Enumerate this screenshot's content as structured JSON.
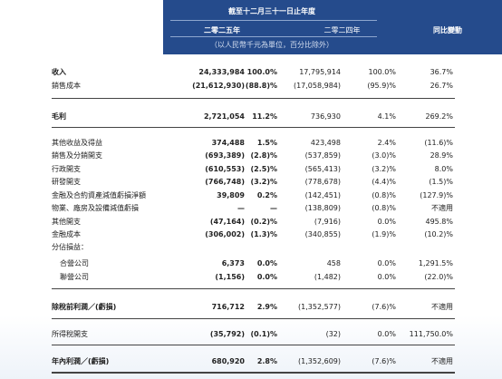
{
  "header": {
    "period": "截至十二月三十一日止年度",
    "year_current": "二零二五年",
    "year_prior": "二零二四年",
    "change": "同比變動",
    "unit": "（以人民幣千元為單位，百分比除外）"
  },
  "table": {
    "rows": [
      {
        "label": "收入",
        "cells": [
          "24,333,984",
          "100.0%",
          "17,795,914",
          "100.0%",
          "36.7%"
        ]
      },
      {
        "label": "銷售成本",
        "cells": [
          "(21,612,930)",
          "(88.8)%",
          "(17,058,984)",
          "(95.9)%",
          "26.7%"
        ]
      },
      {
        "label": "毛利",
        "cells": [
          "2,721,054",
          "11.2%",
          "736,930",
          "4.1%",
          "269.2%"
        ]
      },
      {
        "label": "其他收益及得益",
        "cells": [
          "374,488",
          "1.5%",
          "423,498",
          "2.4%",
          "(11.6)%"
        ]
      },
      {
        "label": "銷售及分銷開支",
        "cells": [
          "(693,389)",
          "(2.8)%",
          "(537,859)",
          "(3.0)%",
          "28.9%"
        ]
      },
      {
        "label": "行政開支",
        "cells": [
          "(610,553)",
          "(2.5)%",
          "(565,413)",
          "(3.2)%",
          "8.0%"
        ]
      },
      {
        "label": "研發開支",
        "cells": [
          "(766,748)",
          "(3.2)%",
          "(778,678)",
          "(4.4)%",
          "(1.5)%"
        ]
      },
      {
        "label": "金融及合約資產減值虧損淨額",
        "cells": [
          "39,809",
          "0.2%",
          "(142,451)",
          "(0.8)%",
          "(127.9)%"
        ]
      },
      {
        "label": "物業、廠房及設備減值虧損",
        "cells": [
          "—",
          "—",
          "(138,809)",
          "(0.8)%",
          "不適用"
        ]
      },
      {
        "label": "其他開支",
        "cells": [
          "(47,164)",
          "(0.2)%",
          "(7,916)",
          "0.0%",
          "495.8%"
        ]
      },
      {
        "label": "金融成本",
        "cells": [
          "(306,002)",
          "(1.3)%",
          "(340,855)",
          "(1.9)%",
          "(10.2)%"
        ]
      },
      {
        "label": "分佔損益："
      },
      {
        "label": "合營公司",
        "cells": [
          "6,373",
          "0.0%",
          "458",
          "0.0%",
          "1,291.5%"
        ]
      },
      {
        "label": "聯營公司",
        "cells": [
          "(1,156)",
          "0.0%",
          "(1,482)",
          "0.0%",
          "(22.0)%"
        ]
      },
      {
        "label": "除稅前利潤／(虧損)",
        "cells": [
          "716,712",
          "2.9%",
          "(1,352,577)",
          "(7.6)%",
          "不適用"
        ]
      },
      {
        "label": "所得稅開支",
        "cells": [
          "(35,792)",
          "(0.1)%",
          "(32)",
          "0.0%",
          "111,750.0%"
        ]
      },
      {
        "label": "年內利潤／(虧損)",
        "cells": [
          "680,920",
          "2.8%",
          "(1,352,609)",
          "(7.6)%",
          "不適用"
        ]
      }
    ]
  }
}
